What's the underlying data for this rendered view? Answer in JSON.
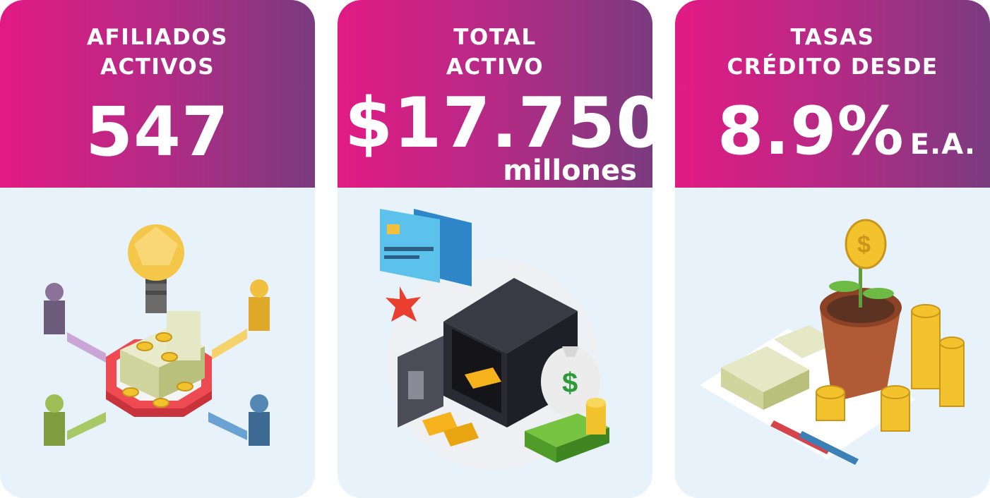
{
  "stats": [
    {
      "label_line1": "AFILIADOS",
      "label_line2": "ACTIVOS",
      "value": "547"
    },
    {
      "label_line1": "TOTAL",
      "label_line2": "ACTIVO",
      "value": "$17.750",
      "suffix": "millones"
    },
    {
      "label_line1": "TASAS",
      "label_line2": "CRÉDITO DESDE",
      "value": "8.9%",
      "suffix": "E.A."
    }
  ],
  "colors": {
    "header_start": "#e21a84",
    "header_end": "#7a3b7f",
    "card_bg": "#e8f2fb",
    "text": "#ffffff"
  },
  "illustrations": [
    "affiliates-network-illustration",
    "safe-money-illustration",
    "growing-coin-plant-illustration"
  ]
}
